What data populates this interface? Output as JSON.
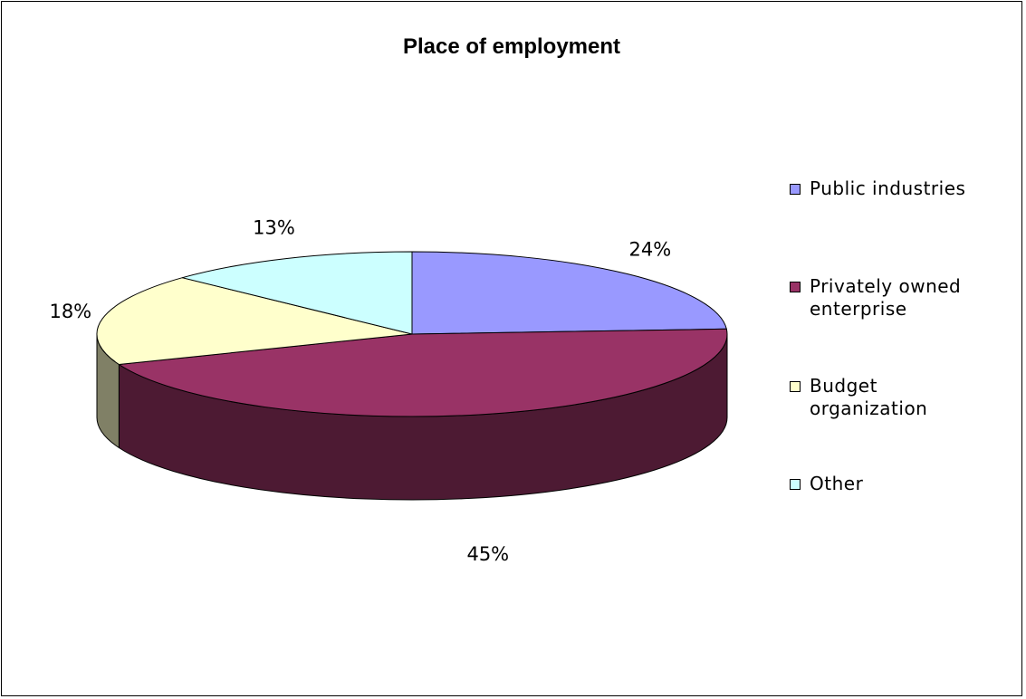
{
  "chart_data": {
    "type": "pie",
    "title": "Place of employment",
    "three_d": true,
    "legend_position": "right",
    "slices": [
      {
        "label": "Public industries",
        "value": 24,
        "label_text": "24%",
        "color": "#9999ff"
      },
      {
        "label": "Privately owned enterprise",
        "value": 45,
        "label_text": "45%",
        "color": "#993366"
      },
      {
        "label": "Budget organization",
        "value": 18,
        "label_text": "18%",
        "color": "#ffffcc"
      },
      {
        "label": "Other",
        "value": 13,
        "label_text": "13%",
        "color": "#ccffff"
      }
    ],
    "legend": [
      {
        "line1": "Public industries",
        "line2": ""
      },
      {
        "line1": "Privately owned",
        "line2": "enterprise"
      },
      {
        "line1": "Budget",
        "line2": "organization"
      },
      {
        "line1": "Other",
        "line2": ""
      }
    ]
  }
}
